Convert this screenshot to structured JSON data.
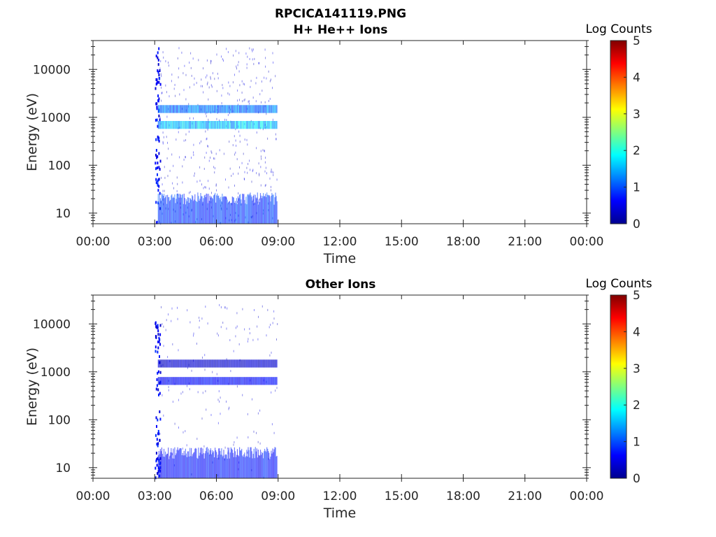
{
  "figure": {
    "title": "RPCICA141119.PNG"
  },
  "chart_data": [
    {
      "type": "heatmap",
      "title": "H+ He++ Ions",
      "xlabel": "Time",
      "ylabel": "Energy (eV)",
      "x_ticks": [
        "00:00",
        "03:00",
        "06:00",
        "09:00",
        "12:00",
        "15:00",
        "18:00",
        "21:00",
        "00:00"
      ],
      "x_range_hours": [
        0,
        24
      ],
      "y_scale": "log",
      "y_ticks": [
        {
          "value": 10,
          "label": "10"
        },
        {
          "value": 100,
          "label": "100"
        },
        {
          "value": 1000,
          "label": "1000"
        },
        {
          "value": 10000,
          "label": "10000"
        }
      ],
      "y_range": [
        6,
        40000
      ],
      "data_window_hours": [
        3.0,
        8.95
      ],
      "colorbar": {
        "label": "Log Counts",
        "range": [
          0,
          5
        ],
        "ticks": [
          "0",
          "1",
          "2",
          "3",
          "4",
          "5"
        ],
        "colors": [
          "#00008f",
          "#0000ff",
          "#00ffff",
          "#ffff00",
          "#ff0000",
          "#800000"
        ]
      },
      "bands": [
        {
          "energy_eV": 700,
          "log_counts": 1.6
        },
        {
          "energy_eV": 1500,
          "log_counts": 1.2
        },
        {
          "energy_eV": 15,
          "log_counts": 0.9
        }
      ],
      "grid": false
    },
    {
      "type": "heatmap",
      "title": "Other Ions",
      "xlabel": "Time",
      "ylabel": "Energy (eV)",
      "x_ticks": [
        "00:00",
        "03:00",
        "06:00",
        "09:00",
        "12:00",
        "15:00",
        "18:00",
        "21:00",
        "00:00"
      ],
      "x_range_hours": [
        0,
        24
      ],
      "y_scale": "log",
      "y_ticks": [
        {
          "value": 10,
          "label": "10"
        },
        {
          "value": 100,
          "label": "100"
        },
        {
          "value": 1000,
          "label": "1000"
        },
        {
          "value": 10000,
          "label": "10000"
        }
      ],
      "y_range": [
        6,
        40000
      ],
      "data_window_hours": [
        3.0,
        8.95
      ],
      "colorbar": {
        "label": "Log Counts",
        "range": [
          0,
          5
        ],
        "ticks": [
          "0",
          "1",
          "2",
          "3",
          "4",
          "5"
        ],
        "colors": [
          "#00008f",
          "#0000ff",
          "#00ffff",
          "#ffff00",
          "#ff0000",
          "#800000"
        ]
      },
      "bands": [
        {
          "energy_eV": 650,
          "log_counts": 0.9
        },
        {
          "energy_eV": 1500,
          "log_counts": 0.5
        },
        {
          "energy_eV": 15,
          "log_counts": 1.0
        }
      ],
      "grid": false
    }
  ]
}
